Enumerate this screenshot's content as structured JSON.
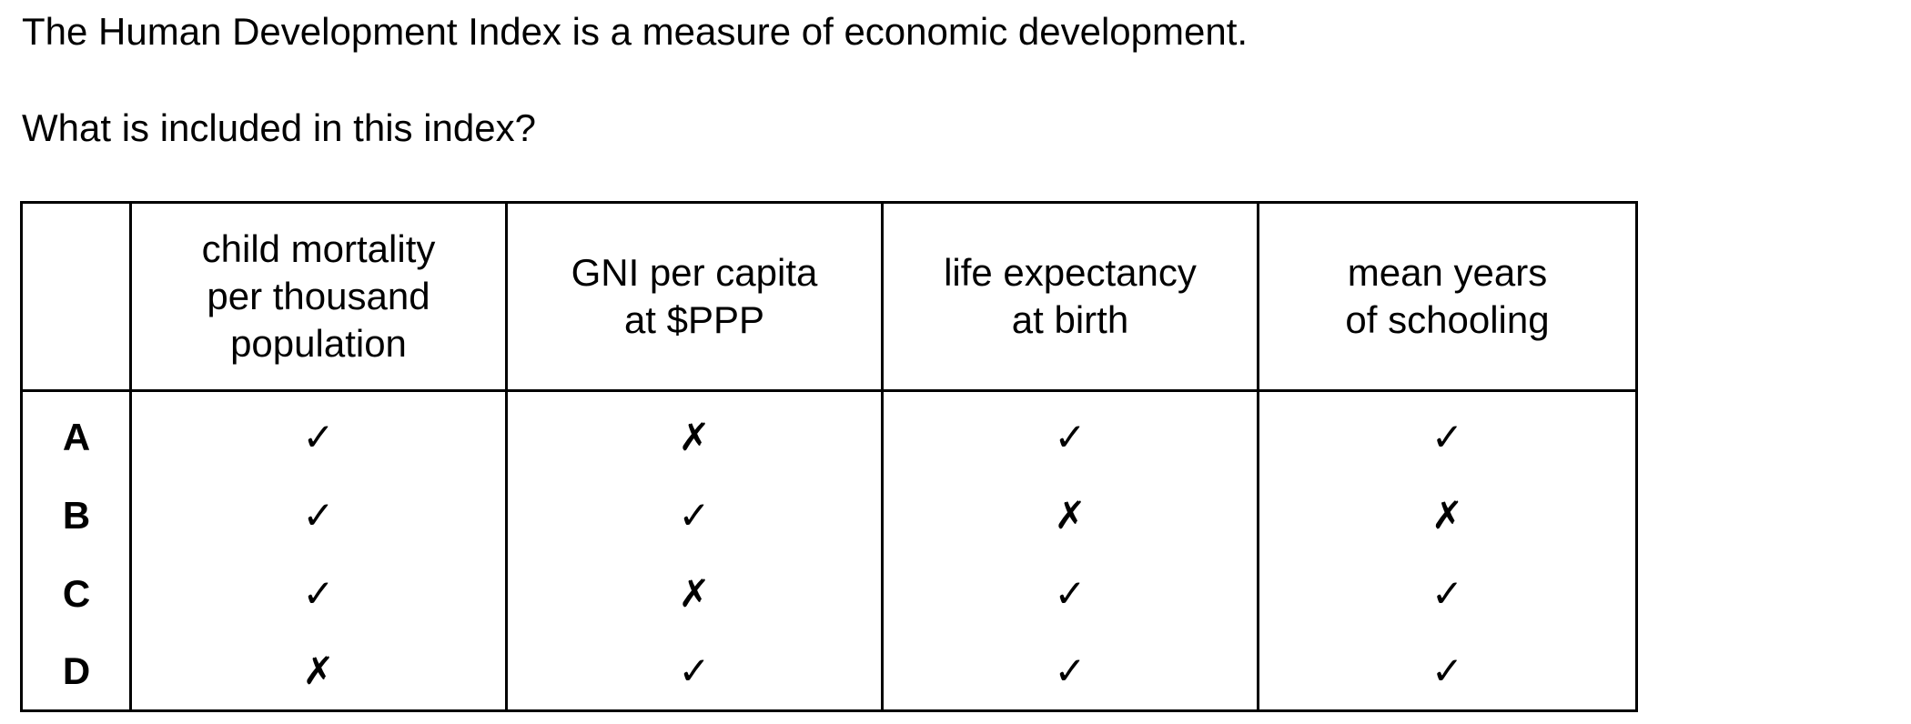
{
  "statement": "The Human Development Index is a measure of economic development.",
  "question": "What is included in this index?",
  "table": {
    "headers": [
      "child mortality\nper thousand\npopulation",
      "GNI per capita\nat $PPP",
      "life expectancy\nat birth",
      "mean years\nof schooling"
    ],
    "rows": [
      {
        "label": "A",
        "marks": [
          "✓",
          "✗",
          "✓",
          "✓"
        ]
      },
      {
        "label": "B",
        "marks": [
          "✓",
          "✓",
          "✗",
          "✗"
        ]
      },
      {
        "label": "C",
        "marks": [
          "✓",
          "✗",
          "✓",
          "✓"
        ]
      },
      {
        "label": "D",
        "marks": [
          "✗",
          "✓",
          "✓",
          "✓"
        ]
      }
    ]
  }
}
